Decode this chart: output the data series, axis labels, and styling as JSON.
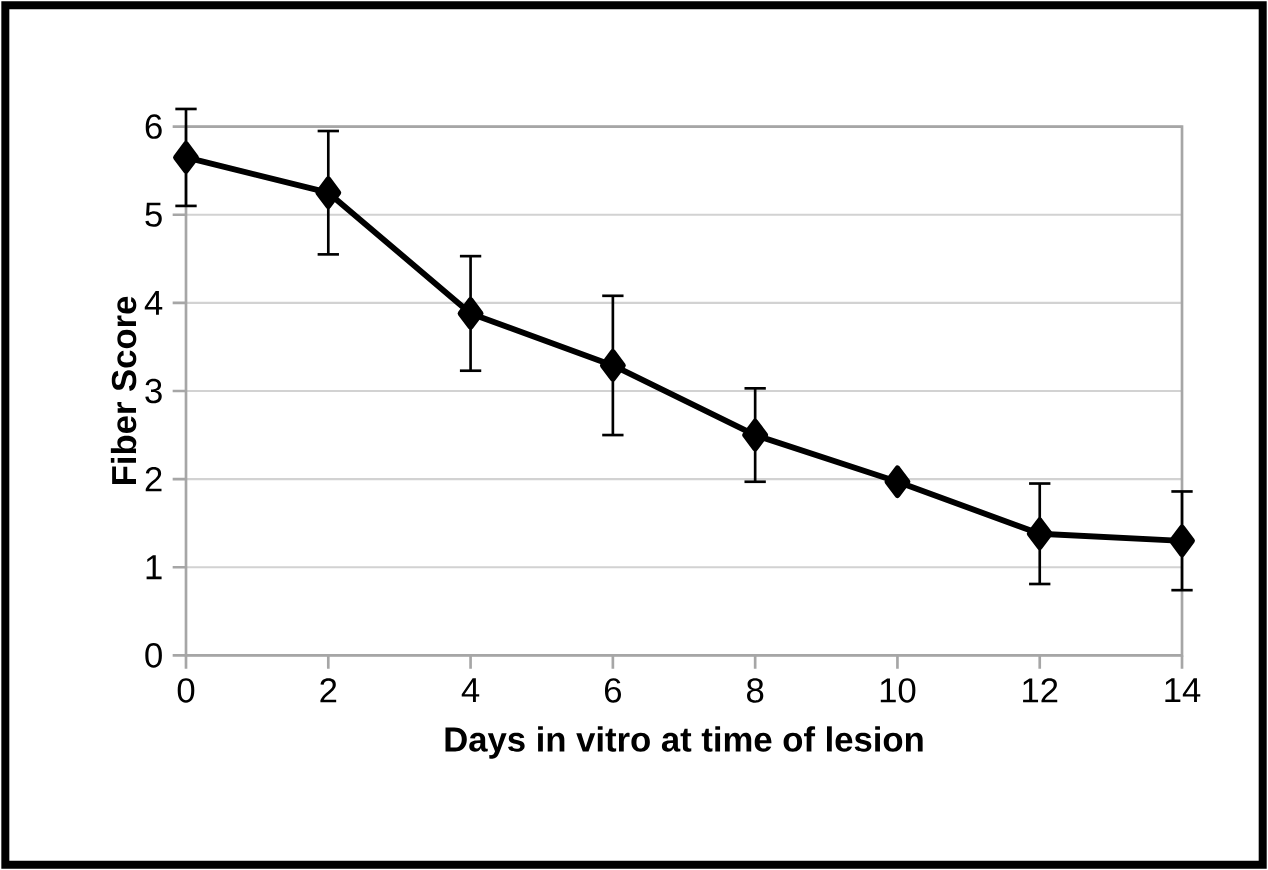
{
  "chart_data": {
    "type": "line",
    "xlabel": "Days in vitro at time of lesion",
    "ylabel": "Fiber Score",
    "x": [
      0,
      2,
      4,
      6,
      8,
      10,
      12,
      14
    ],
    "series": [
      {
        "color": "#000000",
        "values": [
          5.65,
          5.25,
          3.88,
          3.29,
          2.5,
          1.97,
          1.38,
          1.3
        ],
        "errors": [
          0.55,
          0.7,
          0.65,
          0.79,
          0.53,
          null,
          0.57,
          0.56
        ]
      }
    ],
    "xlim": [
      0,
      14
    ],
    "xticks": [
      0,
      2,
      4,
      6,
      8,
      10,
      12,
      14
    ],
    "ylim": [
      0,
      6
    ],
    "yticks": [
      0,
      1,
      2,
      3,
      4,
      5,
      6
    ],
    "grid": "y",
    "marker": "diamond",
    "line_style": "solid"
  }
}
